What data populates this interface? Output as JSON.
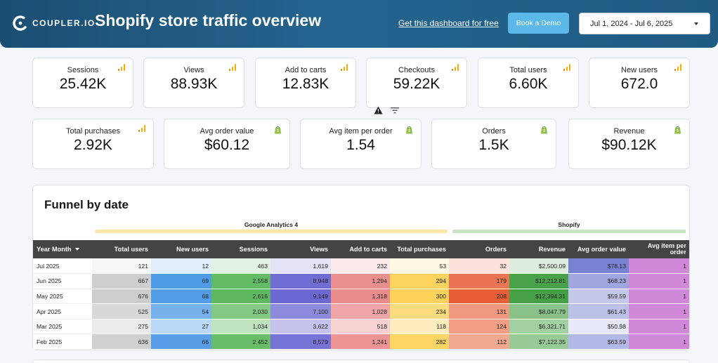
{
  "header": {
    "logo_text": "COUPLER.IO",
    "title": "Shopify store traffic overview",
    "get_link": "Get this dashboard for free",
    "demo_button": "Book a Demo",
    "date_range": "Jul 1, 2024 - Jul 6, 2025"
  },
  "kpis_row1": [
    {
      "label": "Sessions",
      "value": "25.42K",
      "source": "ga"
    },
    {
      "label": "Views",
      "value": "88.93K",
      "source": "ga"
    },
    {
      "label": "Add to carts",
      "value": "12.83K",
      "source": "ga"
    },
    {
      "label": "Checkouts",
      "value": "59.22K",
      "source": "ga"
    },
    {
      "label": "Total users",
      "value": "6.60K",
      "source": "ga"
    },
    {
      "label": "New users",
      "value": "672.0",
      "source": "ga"
    }
  ],
  "kpis_row2": [
    {
      "label": "Total purchases",
      "value": "2.92K",
      "source": "ga"
    },
    {
      "label": "Avg order value",
      "value": "$60.12",
      "source": "shopify"
    },
    {
      "label": "Avg item per order",
      "value": "1.54",
      "source": "shopify"
    },
    {
      "label": "Orders",
      "value": "1.5K",
      "source": "shopify"
    },
    {
      "label": "Revenue",
      "value": "$90.12K",
      "source": "shopify"
    }
  ],
  "colors": {
    "ga_orange": "#f9ab00",
    "shopify_green": "#95bf47",
    "ga_group_bar": "#fce8a8",
    "shopify_group_bar": "#c9e6c4",
    "table_header": "#444444"
  },
  "funnel": {
    "title": "Funnel by date",
    "group_ga": "Google Analytics 4",
    "group_shopify": "Shopify",
    "columns": [
      "Year Month",
      "Total users",
      "New users",
      "Sessions",
      "Views",
      "Add to carts",
      "Total purchases",
      "Orders",
      "Revenue",
      "Avg order value",
      "Avg item per order"
    ],
    "rows": [
      [
        "Jul 2025",
        "121",
        "12",
        "463",
        "1,619",
        "232",
        "53",
        "32",
        "$2,500.09",
        "$78.13",
        "1"
      ],
      [
        "Jun 2025",
        "667",
        "69",
        "2,558",
        "8,948",
        "1,294",
        "294",
        "179",
        "$12,212.81",
        "$68.23",
        "1"
      ],
      [
        "May 2025",
        "676",
        "68",
        "2,616",
        "9,149",
        "1,318",
        "300",
        "208",
        "$12,394.31",
        "$59.59",
        "1"
      ],
      [
        "Apr 2025",
        "525",
        "54",
        "2,030",
        "7,100",
        "1,028",
        "234",
        "131",
        "$8,047.79",
        "$61.43",
        "1"
      ],
      [
        "Mar 2025",
        "275",
        "27",
        "1,034",
        "3,622",
        "518",
        "118",
        "124",
        "$6,321.71",
        "$50.98",
        "1"
      ],
      [
        "Feb 2025",
        "636",
        "66",
        "2,452",
        "8,579",
        "1,241",
        "282",
        "112",
        "$7,122.35",
        "$63.59",
        "1"
      ]
    ]
  }
}
